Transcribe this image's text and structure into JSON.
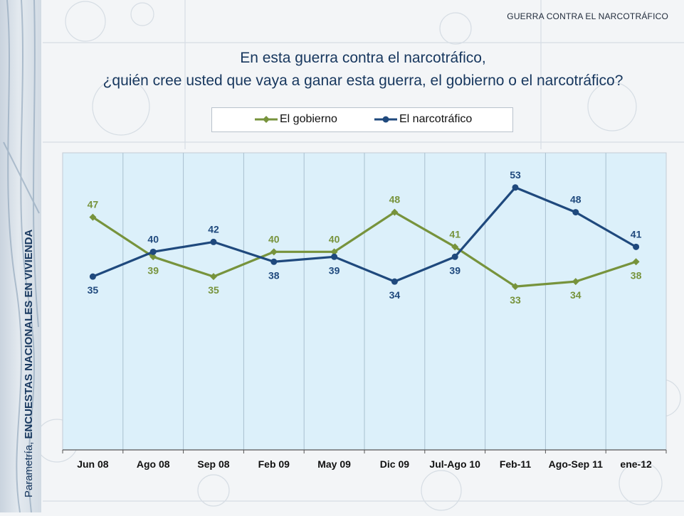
{
  "header": {
    "section_tag": "GUERRA CONTRA EL NARCOTRÁFICO",
    "title_line1": "En esta guerra contra el narcotráfico,",
    "title_line2": "¿quién cree usted que vaya a ganar esta guerra, el gobierno o el narcotráfico?"
  },
  "sidebar": {
    "brand": "Parametría,",
    "label": "ENCUESTAS NACIONALES EN VIVIENDA"
  },
  "colors": {
    "gobierno": "#77933c",
    "narco": "#1f497d",
    "plot_bg": "#dcf0fa",
    "grid": "#a9c0cf"
  },
  "chart_data": {
    "type": "line",
    "categories": [
      "Jun 08",
      "Ago 08",
      "Sep 08",
      "Feb 09",
      "May 09",
      "Dic 09",
      "Jul-Ago 10",
      "Feb-11",
      "Ago-Sep 11",
      "ene-12"
    ],
    "series": [
      {
        "name": "El gobierno",
        "values": [
          47,
          39,
          35,
          40,
          40,
          48,
          41,
          33,
          34,
          38
        ]
      },
      {
        "name": "El narcotráfico",
        "values": [
          35,
          40,
          42,
          38,
          39,
          34,
          39,
          53,
          48,
          41
        ]
      }
    ],
    "ylim": [
      0,
      60
    ],
    "grid": true,
    "legend_position": "top"
  }
}
